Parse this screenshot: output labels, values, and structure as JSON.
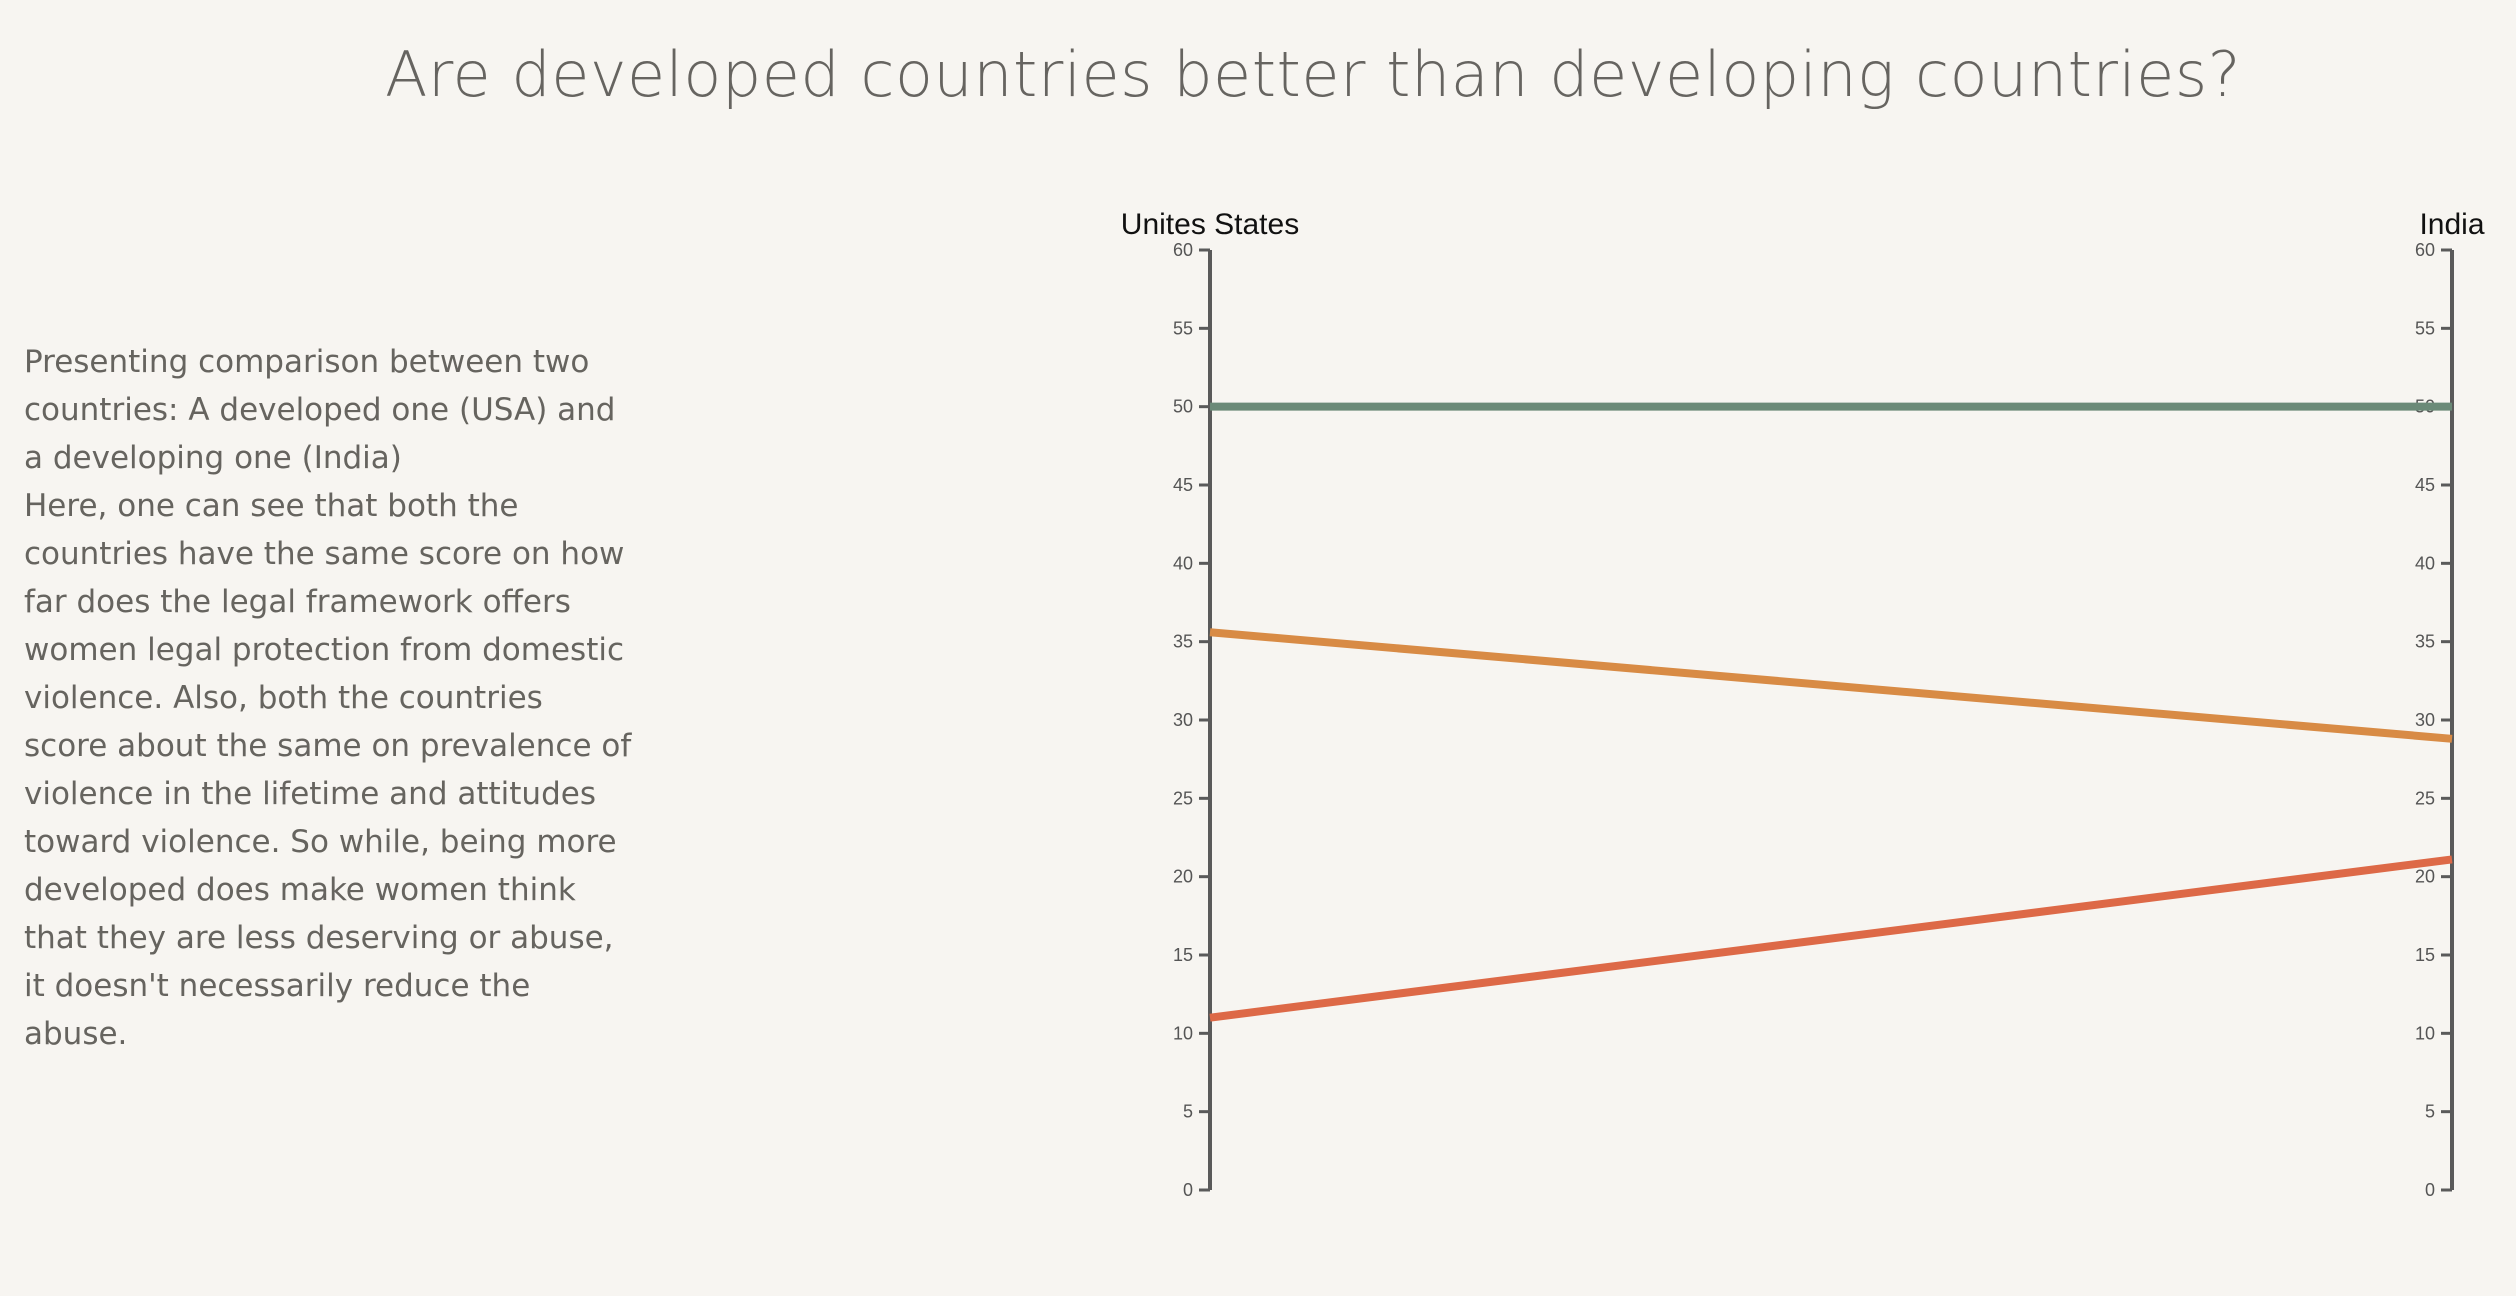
{
  "page": {
    "title": "Are developed countries better than developing countries?",
    "description": [
      "Presenting comparison between two countries: A developed one (USA) and a developing one (India)",
      "Here, one can see that both the countries have the same score on how far does the legal framework offers women legal protection from domestic violence. Also, both the countries score about the same on prevalence of violence in the lifetime and attitudes toward violence. So while, being more developed does make women think that they are less deserving or abuse, it doesn't necessarily reduce the abuse."
    ]
  },
  "chart_data": {
    "type": "line",
    "x": [
      "Unites States",
      "India"
    ],
    "ylim": [
      0,
      60
    ],
    "yticks": [
      0,
      5,
      10,
      15,
      20,
      25,
      30,
      35,
      40,
      45,
      50,
      55,
      60
    ],
    "grid": false,
    "series": [
      {
        "values": [
          50,
          50
        ],
        "color": "#6b8a78"
      },
      {
        "values": [
          35.6,
          28.8
        ],
        "color": "#d88b45"
      },
      {
        "values": [
          11.0,
          21.1
        ],
        "color": "#dd6947"
      }
    ]
  }
}
